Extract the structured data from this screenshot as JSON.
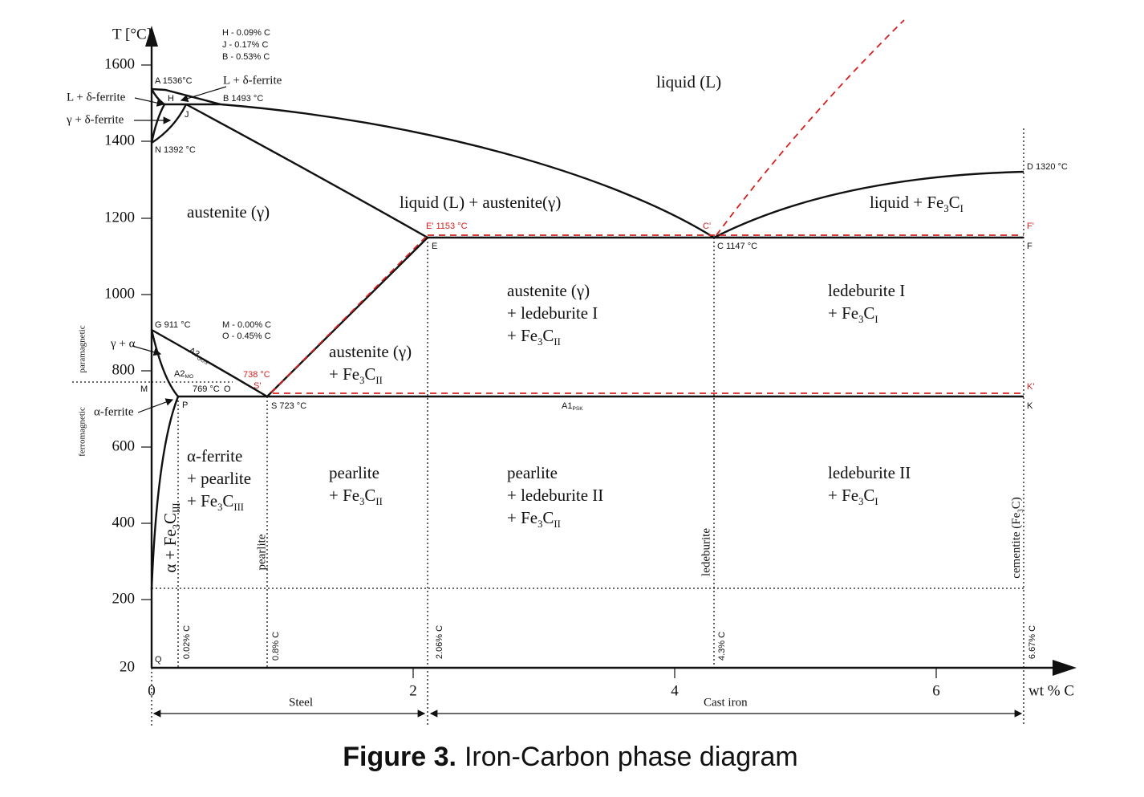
{
  "axis": {
    "y_title": "T [°C]",
    "x_title": "wt % C",
    "y_ticks": [
      "1600",
      "1400",
      "1200",
      "1000",
      "800",
      "600",
      "400",
      "200",
      "20"
    ],
    "x_ticks": [
      "0",
      "2",
      "4",
      "6"
    ]
  },
  "compositions": [
    "H - 0.09%  C",
    "J  - 0.17%  C",
    "B - 0.53%  C",
    "M - 0.00%  C",
    "O - 0.45%  C"
  ],
  "points": [
    "A 1536°C",
    "H",
    "B 1493 °C",
    "J",
    "N 1392 °C",
    "E' 1153 °C",
    "E",
    "C'",
    "C 1147 °C",
    "D 1320 °C",
    "F'",
    "F",
    "G 911 °C",
    "738 °C",
    "S'",
    "S 723 °C",
    "769 °C",
    "O",
    "M",
    "P",
    "K'",
    "K",
    "Q"
  ],
  "line_labels": [
    [
      "A3",
      "GOS"
    ],
    [
      "A2",
      "MO"
    ],
    [
      "A1",
      "PSK"
    ]
  ],
  "side_labels": [
    "L + δ-ferrite",
    "L + δ-ferrite",
    "γ + δ-ferrite",
    "γ + α",
    "α-ferrite",
    "paramagnetic",
    "ferromagnetic"
  ],
  "ranges": [
    "Steel",
    "Cast iron"
  ],
  "vertical_labels": [
    "0.02% C",
    "0.8% C",
    "2.06% C",
    "4.3% C",
    "6.67% C",
    "pearlite",
    "ledeburite",
    [
      "cementite (Fe",
      "3",
      "C)"
    ]
  ],
  "regions": [
    [
      [
        "liquid (L)"
      ]
    ],
    [
      [
        "austenite (γ)"
      ]
    ],
    [
      [
        "liquid (L) + austenite(γ)"
      ]
    ],
    [
      [
        "liquid + Fe",
        "3",
        "C",
        "I"
      ]
    ],
    [
      [
        "austenite (γ)"
      ],
      [
        "+ ledeburite I"
      ],
      [
        "+ Fe",
        "3",
        "C",
        "II"
      ]
    ],
    [
      [
        "ledeburite I"
      ],
      [
        "+ Fe",
        "3",
        "C",
        "I"
      ]
    ],
    [
      [
        "austenite (γ)"
      ],
      [
        "+ Fe",
        "3",
        "C",
        "II"
      ]
    ],
    [
      [
        "α-ferrite"
      ],
      [
        "+ pearlite"
      ],
      [
        "+ Fe",
        "3",
        "C",
        "III"
      ]
    ],
    [
      [
        "pearlite"
      ],
      [
        "+ Fe",
        "3",
        "C",
        "II"
      ]
    ],
    [
      [
        "pearlite"
      ],
      [
        "+ ledeburite II"
      ],
      [
        "+ Fe",
        "3",
        "C",
        "II"
      ]
    ],
    [
      [
        "ledeburite II"
      ],
      [
        "+ Fe",
        "3",
        "C",
        "I"
      ]
    ],
    [
      [
        "α + Fe",
        "3",
        "C",
        "III"
      ]
    ]
  ],
  "caption": {
    "label": "Figure 3.",
    "text": "Iron-Carbon phase diagram"
  }
}
